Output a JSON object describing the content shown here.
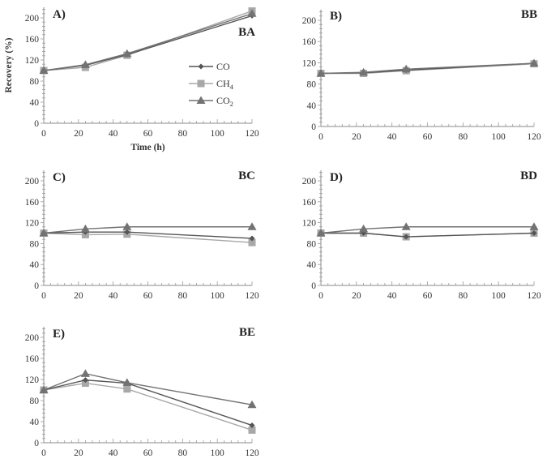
{
  "chart_data": [
    {
      "type": "line",
      "panel_label": "A)",
      "panel_code": "BA",
      "xlabel": "Time (h)",
      "ylabel": "Recovery (%)",
      "x": [
        0,
        24,
        48,
        120
      ],
      "xticks": [
        0,
        20,
        40,
        60,
        80,
        100,
        120
      ],
      "yticks": [
        0,
        40,
        80,
        120,
        160,
        200
      ],
      "xlim": [
        0,
        120
      ],
      "ylim": [
        0,
        220
      ],
      "legend": true,
      "legend_position": "center-right",
      "series": [
        {
          "name": "CO",
          "values": [
            100,
            110,
            130,
            204
          ]
        },
        {
          "name": "CH4",
          "values": [
            100,
            106,
            129,
            213
          ]
        },
        {
          "name": "CO2",
          "values": [
            100,
            111,
            132,
            208
          ]
        }
      ]
    },
    {
      "type": "line",
      "panel_label": "B)",
      "panel_code": "BB",
      "xlabel": "",
      "ylabel": "",
      "x": [
        0,
        24,
        48,
        120
      ],
      "xticks": [
        0,
        20,
        40,
        60,
        80,
        100,
        120
      ],
      "yticks": [
        0,
        40,
        80,
        120,
        160,
        200
      ],
      "xlim": [
        0,
        120
      ],
      "ylim": [
        0,
        220
      ],
      "legend": false,
      "series": [
        {
          "name": "CO",
          "values": [
            100,
            101,
            106,
            119
          ]
        },
        {
          "name": "CH4",
          "values": [
            100,
            100,
            105,
            118
          ]
        },
        {
          "name": "CO2",
          "values": [
            100,
            102,
            108,
            119
          ]
        }
      ]
    },
    {
      "type": "line",
      "panel_label": "C)",
      "panel_code": "BC",
      "xlabel": "",
      "ylabel": "",
      "x": [
        0,
        24,
        48,
        120
      ],
      "xticks": [
        0,
        20,
        40,
        60,
        80,
        100,
        120
      ],
      "yticks": [
        0,
        40,
        80,
        120,
        160,
        200
      ],
      "xlim": [
        0,
        120
      ],
      "ylim": [
        0,
        220
      ],
      "legend": false,
      "series": [
        {
          "name": "CO",
          "values": [
            100,
            102,
            102,
            90
          ]
        },
        {
          "name": "CH4",
          "values": [
            100,
            97,
            98,
            82
          ]
        },
        {
          "name": "CO2",
          "values": [
            100,
            108,
            112,
            112
          ]
        }
      ]
    },
    {
      "type": "line",
      "panel_label": "D)",
      "panel_code": "BD",
      "xlabel": "",
      "ylabel": "",
      "x": [
        0,
        24,
        48,
        120
      ],
      "xticks": [
        0,
        20,
        40,
        60,
        80,
        100,
        120
      ],
      "yticks": [
        0,
        40,
        80,
        120,
        160,
        200
      ],
      "xlim": [
        0,
        120
      ],
      "ylim": [
        0,
        220
      ],
      "legend": false,
      "series": [
        {
          "name": "CO",
          "values": [
            100,
            100,
            93,
            100
          ]
        },
        {
          "name": "CH4",
          "values": [
            100,
            100,
            93,
            100
          ]
        },
        {
          "name": "CO2",
          "values": [
            100,
            108,
            112,
            112
          ]
        }
      ]
    },
    {
      "type": "line",
      "panel_label": "E)",
      "panel_code": "BE",
      "xlabel": "",
      "ylabel": "",
      "x": [
        0,
        24,
        48,
        120
      ],
      "xticks": [
        0,
        20,
        40,
        60,
        80,
        100,
        120
      ],
      "yticks": [
        0,
        40,
        80,
        120,
        160,
        200
      ],
      "xlim": [
        0,
        120
      ],
      "ylim": [
        0,
        220
      ],
      "legend": false,
      "series": [
        {
          "name": "CO",
          "values": [
            100,
            119,
            113,
            33
          ]
        },
        {
          "name": "CH4",
          "values": [
            100,
            113,
            102,
            24
          ]
        },
        {
          "name": "CO2",
          "values": [
            100,
            131,
            114,
            72
          ]
        }
      ]
    }
  ],
  "legend": {
    "items": [
      {
        "name": "CO",
        "label": "CO",
        "sub": "",
        "marker": "diamond",
        "color": "#555555"
      },
      {
        "name": "CH4",
        "label": "CH",
        "sub": "4",
        "marker": "square",
        "color": "#a8a8a8"
      },
      {
        "name": "CO2",
        "label": "CO",
        "sub": "2",
        "marker": "triangle",
        "color": "#727272"
      }
    ]
  }
}
